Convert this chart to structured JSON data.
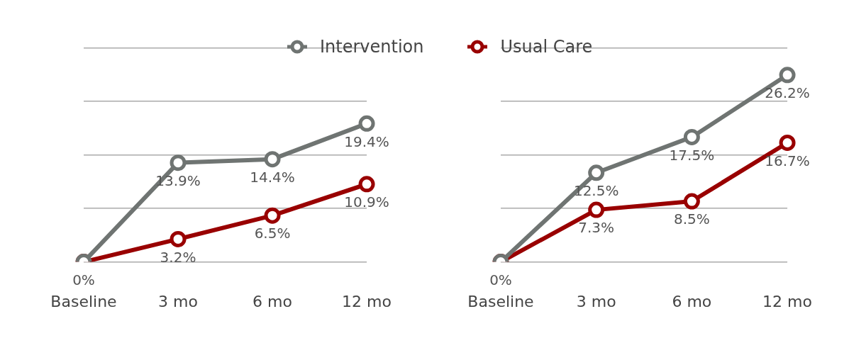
{
  "chart_data": [
    {
      "type": "line",
      "categories": [
        "Baseline",
        "3 mo",
        "6 mo",
        "12 mo"
      ],
      "ylim": [
        0,
        30
      ],
      "yticks": [
        {
          "value": 0,
          "label": null
        },
        {
          "value": 7.5,
          "label": null
        },
        {
          "value": 15,
          "label": null
        },
        {
          "value": 22.5,
          "label": null
        },
        {
          "value": 30,
          "label": null
        }
      ],
      "tick_labels": "x",
      "grid": "y",
      "legend": false,
      "marker": "circle",
      "line_style": "solid",
      "series": [
        {
          "color": "#6f7472",
          "values": [
            0,
            13.9,
            14.4,
            19.4
          ],
          "value_labels": [
            "0%",
            "13.9%",
            "14.4%",
            "19.4%"
          ]
        },
        {
          "color": "#990000",
          "values": [
            0,
            3.2,
            6.5,
            10.9
          ],
          "value_labels": [
            null,
            "3.2%",
            "6.5%",
            "10.9%"
          ]
        }
      ]
    },
    {
      "type": "line",
      "categories": [
        "Baseline",
        "3 mo",
        "6 mo",
        "12 mo"
      ],
      "ylim": [
        0,
        30
      ],
      "yticks": [
        {
          "value": 0,
          "label": null
        },
        {
          "value": 7.5,
          "label": null
        },
        {
          "value": 15,
          "label": null
        },
        {
          "value": 22.5,
          "label": null
        },
        {
          "value": 30,
          "label": null
        }
      ],
      "tick_labels": "x",
      "grid": "y",
      "legend": "top left",
      "marker": "circle",
      "line_style": "solid",
      "series": [
        {
          "name": "Intervention",
          "color": "#6f7472",
          "values": [
            0,
            12.5,
            17.5,
            26.2
          ],
          "value_labels": [
            "0%",
            "12.5%",
            "17.5%",
            "26.2%"
          ]
        },
        {
          "name": "Usual Care",
          "color": "#990000",
          "values": [
            0,
            7.3,
            8.5,
            16.7
          ],
          "value_labels": [
            null,
            "7.3%",
            "8.5%",
            "16.7%"
          ]
        }
      ]
    }
  ]
}
